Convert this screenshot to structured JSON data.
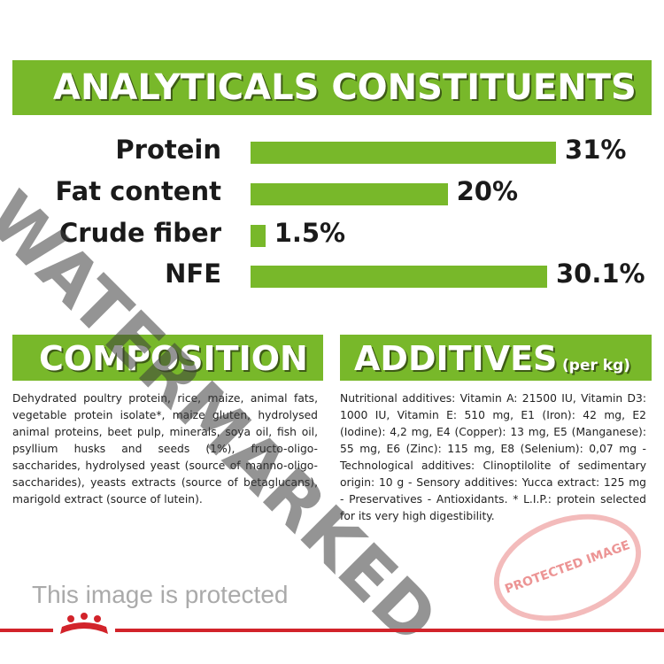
{
  "chart_data": {
    "type": "bar",
    "title": "ANALYTICALS CONSTITUENTS",
    "categories": [
      "Protein",
      "Fat content",
      "Crude fiber",
      "NFE"
    ],
    "values": [
      31,
      20,
      1.5,
      30.1
    ],
    "value_labels": [
      "31%",
      "20%",
      "1.5%",
      "30.1%"
    ],
    "color": "#78b82a"
  },
  "composition": {
    "title": "COMPOSITION",
    "text": "Dehydrated poultry protein, rice, maize, animal fats, vegetable protein isolate*, maize gluten, hydrolysed animal proteins, beet pulp, minerals, soya oil, fish oil, psyllium husks and seeds (1%), fructo-oligo-saccharides, hydrolysed yeast (source of manno-oligo-saccharides), yeasts extracts (source of betaglucans), marigold extract (source of lutein)."
  },
  "additives": {
    "title": "ADDITIVES",
    "unit": "(per kg)",
    "text": "Nutritional additives: Vitamin A: 21500 IU, Vitamin D3: 1000 IU, Vitamin E: 510 mg, E1 (Iron): 42 mg, E2 (Iodine): 4,2 mg, E4 (Copper): 13 mg, E5 (Manganese): 55 mg, E6 (Zinc): 115 mg, E8 (Selenium): 0,07 mg - Technological additives: Clinoptilolite of sedimentary origin: 10 g - Sensory additives: Yucca extract: 125 mg - Preservatives - Antioxidants. * L.I.P.: protein selected for its very high digestibility."
  },
  "watermark": {
    "text": "WATERMARKED",
    "notice": "This image is protected",
    "stamp": "PROTECTED IMAGE"
  }
}
